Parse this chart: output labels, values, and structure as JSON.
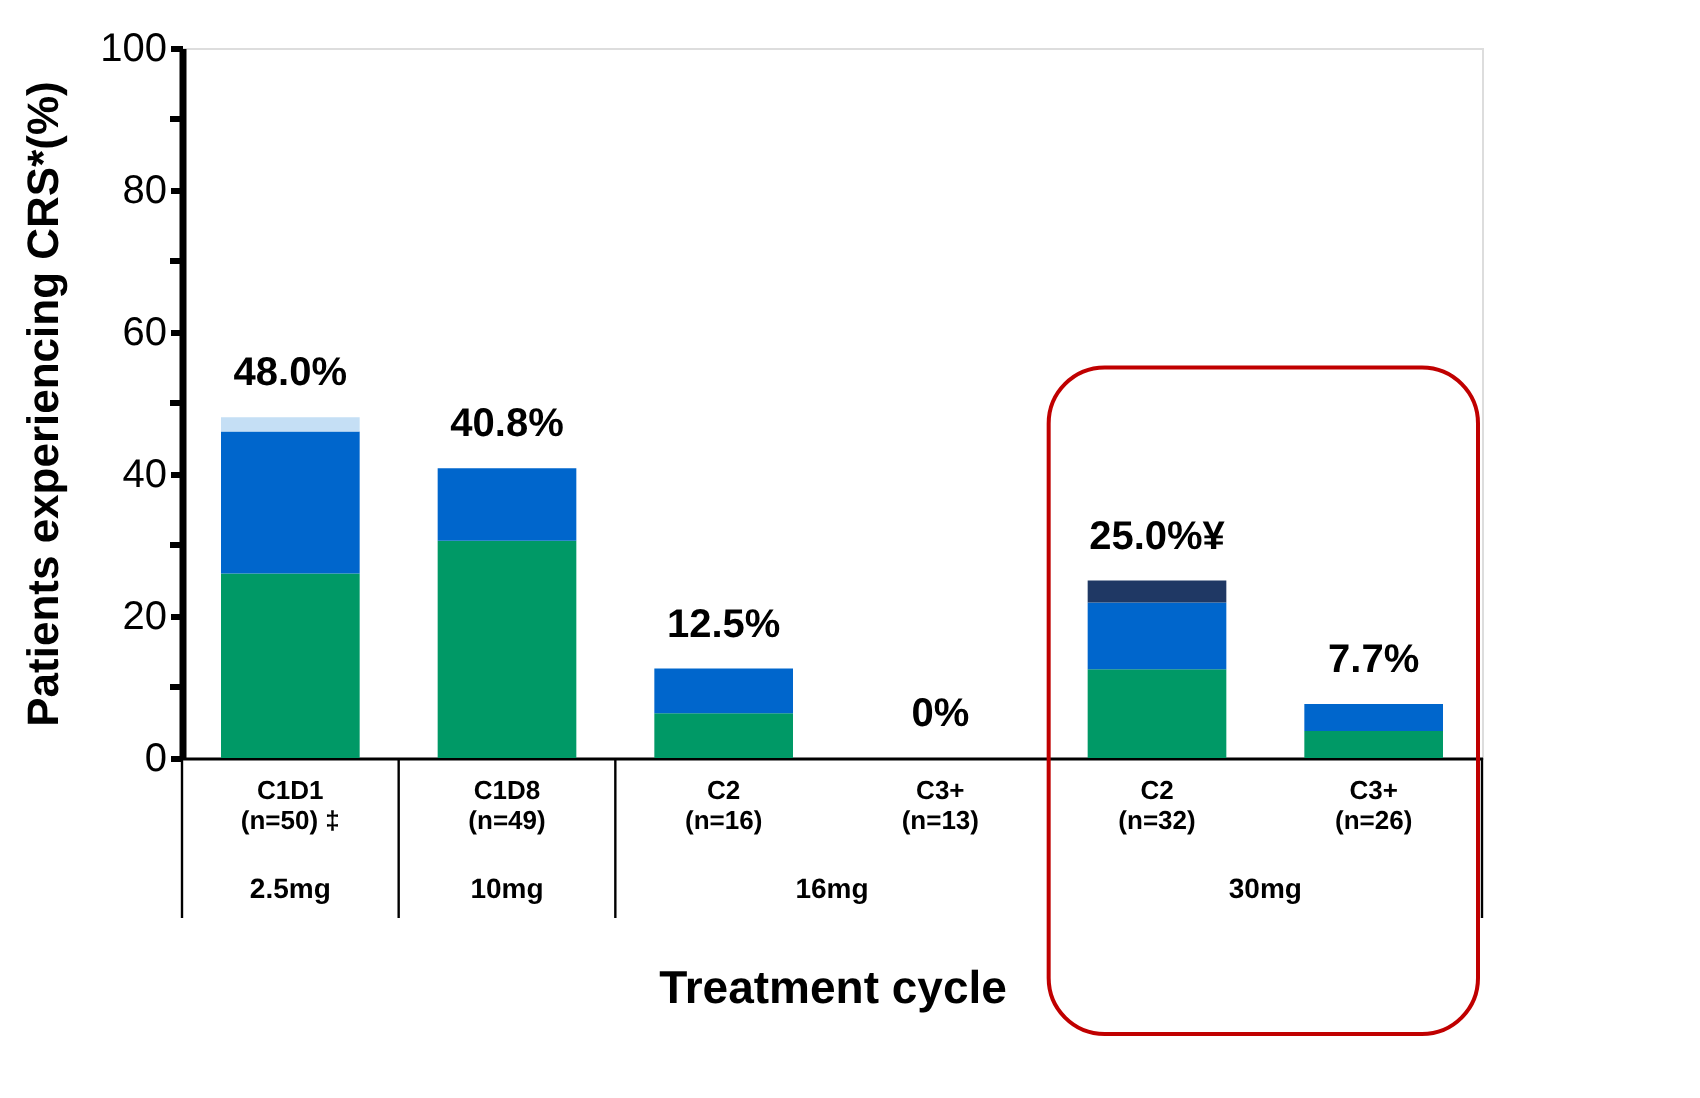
{
  "chart_data": {
    "type": "bar",
    "stacked": true,
    "xlabel": "Treatment cycle",
    "ylabel": "Patients experiencing CRS*(%)",
    "categories": [
      "C1D1\n(n=50) ‡",
      "C1D8\n(n=49)",
      "C2\n(n=16)",
      "C3+\n(n=13)",
      "C2\n(n=32)",
      "C3+\n(n=26)"
    ],
    "series": [
      {
        "color": "#009966",
        "values": [
          26,
          30.6,
          6.3,
          0,
          12.5,
          3.8
        ]
      },
      {
        "color": "#0066cc",
        "values": [
          20,
          10.2,
          6.3,
          0,
          9.4,
          3.8
        ]
      },
      {
        "color": "#c5dff5",
        "values": [
          2,
          null,
          null,
          null,
          null,
          null
        ]
      },
      {
        "color": "#1f3864",
        "values": [
          null,
          null,
          null,
          null,
          3.1,
          null
        ]
      }
    ],
    "totals": [
      "48.0%",
      "40.8%",
      "12.5%",
      "0%",
      "25.0%¥",
      "7.7%"
    ],
    "ylim": [
      0,
      100
    ],
    "yticks": [
      0,
      {
        "value": 10,
        "label": null
      },
      20,
      {
        "value": 30,
        "label": null
      },
      40,
      {
        "value": 50,
        "label": null
      },
      60,
      {
        "value": 70,
        "label": null
      },
      80,
      {
        "value": 90,
        "label": null
      },
      100
    ],
    "annotations": [
      "2.5mg",
      "10mg",
      "16mg",
      "30mg"
    ],
    "grid": false,
    "legend": false
  }
}
